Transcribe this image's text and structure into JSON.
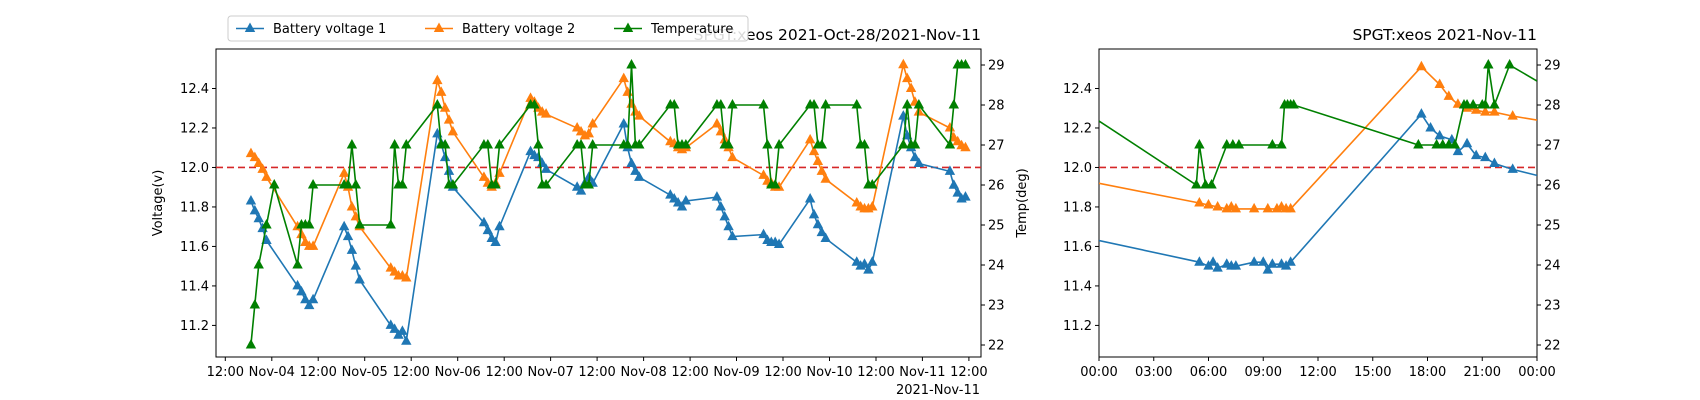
{
  "colors": {
    "battery1": "#1f77b4",
    "battery2": "#ff7f0e",
    "temperature": "#008000",
    "threshold": "#d62728"
  },
  "chart_data": [
    {
      "type": "line",
      "title": "SPGT:xeos 2021-Oct-28/2021-Nov-11",
      "xlabel": "",
      "ylabel": "Voltage(v)",
      "y2label": "Temp(deg)",
      "xlim": [
        "2021-11-03T09:00",
        "2021-11-11T14:00"
      ],
      "ylim": [
        11.04,
        12.6
      ],
      "y2lim": [
        21.7,
        29.4
      ],
      "x_tick_labels": [
        "12:00",
        "Nov-04",
        "12:00",
        "Nov-05",
        "12:00",
        "Nov-06",
        "12:00",
        "Nov-07",
        "12:00",
        "Nov-08",
        "12:00",
        "Nov-09",
        "12:00",
        "Nov-10",
        "12:00",
        "Nov-11",
        "12:00"
      ],
      "x_offset_label": "2021-Nov-11",
      "y_tick_labels": [
        "11.2",
        "11.4",
        "11.6",
        "11.8",
        "12.0",
        "12.2",
        "12.4"
      ],
      "y2_tick_labels": [
        "22",
        "23",
        "24",
        "25",
        "26",
        "27",
        "28",
        "29"
      ],
      "threshold": 12.0,
      "legend": {
        "placement": "top-left, above axes",
        "entries": [
          "Battery voltage 1",
          "Battery voltage 2",
          "Temperature"
        ]
      },
      "series": [
        {
          "name": "Battery voltage 1",
          "axis": "left",
          "marker": "triangle",
          "x": [
            "2021-11-03T18:00",
            "2021-11-03T19:00",
            "2021-11-03T20:00",
            "2021-11-03T21:00",
            "2021-11-03T22:00",
            "2021-11-04T06:00",
            "2021-11-04T07:00",
            "2021-11-04T08:00",
            "2021-11-04T09:00",
            "2021-11-04T10:00",
            "2021-11-04T18:00",
            "2021-11-04T19:00",
            "2021-11-04T20:00",
            "2021-11-04T21:00",
            "2021-11-04T22:00",
            "2021-11-05T06:00",
            "2021-11-05T07:00",
            "2021-11-05T08:00",
            "2021-11-05T09:00",
            "2021-11-05T10:00",
            "2021-11-05T18:00",
            "2021-11-05T19:00",
            "2021-11-05T20:00",
            "2021-11-05T21:00",
            "2021-11-05T22:00",
            "2021-11-06T06:00",
            "2021-11-06T07:00",
            "2021-11-06T08:00",
            "2021-11-06T09:00",
            "2021-11-06T10:00",
            "2021-11-06T18:00",
            "2021-11-06T19:00",
            "2021-11-06T20:00",
            "2021-11-06T21:00",
            "2021-11-06T22:00",
            "2021-11-07T06:00",
            "2021-11-07T07:00",
            "2021-11-07T08:00",
            "2021-11-07T09:00",
            "2021-11-07T10:00",
            "2021-11-07T18:00",
            "2021-11-07T19:00",
            "2021-11-07T20:00",
            "2021-11-07T21:00",
            "2021-11-07T22:00",
            "2021-11-08T06:00",
            "2021-11-08T07:00",
            "2021-11-08T08:00",
            "2021-11-08T09:00",
            "2021-11-08T10:00",
            "2021-11-08T18:00",
            "2021-11-08T19:00",
            "2021-11-08T20:00",
            "2021-11-08T21:00",
            "2021-11-08T22:00",
            "2021-11-09T06:00",
            "2021-11-09T07:00",
            "2021-11-09T08:00",
            "2021-11-09T09:00",
            "2021-11-09T10:00",
            "2021-11-09T18:00",
            "2021-11-09T19:00",
            "2021-11-09T20:00",
            "2021-11-09T21:00",
            "2021-11-09T22:00",
            "2021-11-10T06:00",
            "2021-11-10T07:00",
            "2021-11-10T08:00",
            "2021-11-10T09:00",
            "2021-11-10T10:00",
            "2021-11-10T18:00",
            "2021-11-10T19:00",
            "2021-11-10T20:00",
            "2021-11-10T21:00",
            "2021-11-10T22:00",
            "2021-11-11T06:00",
            "2021-11-11T07:00",
            "2021-11-11T08:00",
            "2021-11-11T09:00",
            "2021-11-11T10:00"
          ],
          "values": [
            11.83,
            11.78,
            11.74,
            11.69,
            11.63,
            11.4,
            11.37,
            11.33,
            11.3,
            11.33,
            11.7,
            11.65,
            11.58,
            11.5,
            11.43,
            11.2,
            11.18,
            11.15,
            11.17,
            11.12,
            12.17,
            12.12,
            12.05,
            11.98,
            11.9,
            11.72,
            11.68,
            11.64,
            11.62,
            11.7,
            12.08,
            12.06,
            12.05,
            12.02,
            11.99,
            11.9,
            11.88,
            11.92,
            11.95,
            11.92,
            12.22,
            12.1,
            12.02,
            11.98,
            11.95,
            11.86,
            11.84,
            11.82,
            11.8,
            11.83,
            11.85,
            11.8,
            11.75,
            11.7,
            11.65,
            11.66,
            11.63,
            11.62,
            11.62,
            11.61,
            11.84,
            11.76,
            11.71,
            11.67,
            11.64,
            11.52,
            11.5,
            11.51,
            11.48,
            11.52,
            12.26,
            12.16,
            12.1,
            12.05,
            12.02,
            11.98,
            11.91,
            11.87,
            11.84,
            11.85
          ]
        },
        {
          "name": "Battery voltage 2",
          "axis": "left",
          "marker": "triangle",
          "x": [
            "2021-11-03T18:00",
            "2021-11-03T19:00",
            "2021-11-03T20:00",
            "2021-11-03T21:00",
            "2021-11-03T22:00",
            "2021-11-04T06:00",
            "2021-11-04T07:00",
            "2021-11-04T08:00",
            "2021-11-04T09:00",
            "2021-11-04T10:00",
            "2021-11-04T18:00",
            "2021-11-04T19:00",
            "2021-11-04T20:00",
            "2021-11-04T21:00",
            "2021-11-04T22:00",
            "2021-11-05T06:00",
            "2021-11-05T07:00",
            "2021-11-05T08:00",
            "2021-11-05T09:00",
            "2021-11-05T10:00",
            "2021-11-05T18:00",
            "2021-11-05T19:00",
            "2021-11-05T20:00",
            "2021-11-05T21:00",
            "2021-11-05T22:00",
            "2021-11-06T06:00",
            "2021-11-06T07:00",
            "2021-11-06T08:00",
            "2021-11-06T09:00",
            "2021-11-06T10:00",
            "2021-11-06T18:00",
            "2021-11-06T19:00",
            "2021-11-06T20:00",
            "2021-11-06T21:00",
            "2021-11-06T22:00",
            "2021-11-07T06:00",
            "2021-11-07T07:00",
            "2021-11-07T08:00",
            "2021-11-07T09:00",
            "2021-11-07T10:00",
            "2021-11-07T18:00",
            "2021-11-07T19:00",
            "2021-11-07T20:00",
            "2021-11-07T21:00",
            "2021-11-07T22:00",
            "2021-11-08T06:00",
            "2021-11-08T07:00",
            "2021-11-08T08:00",
            "2021-11-08T09:00",
            "2021-11-08T10:00",
            "2021-11-08T18:00",
            "2021-11-08T19:00",
            "2021-11-08T20:00",
            "2021-11-08T21:00",
            "2021-11-08T22:00",
            "2021-11-09T06:00",
            "2021-11-09T07:00",
            "2021-11-09T08:00",
            "2021-11-09T09:00",
            "2021-11-09T10:00",
            "2021-11-09T18:00",
            "2021-11-09T19:00",
            "2021-11-09T20:00",
            "2021-11-09T21:00",
            "2021-11-09T22:00",
            "2021-11-10T06:00",
            "2021-11-10T07:00",
            "2021-11-10T08:00",
            "2021-11-10T09:00",
            "2021-11-10T10:00",
            "2021-11-10T18:00",
            "2021-11-10T19:00",
            "2021-11-10T20:00",
            "2021-11-10T21:00",
            "2021-11-10T22:00",
            "2021-11-11T06:00",
            "2021-11-11T07:00",
            "2021-11-11T08:00",
            "2021-11-11T09:00",
            "2021-11-11T10:00"
          ],
          "values": [
            12.07,
            12.05,
            12.02,
            11.99,
            11.95,
            11.7,
            11.66,
            11.62,
            11.6,
            11.6,
            11.97,
            11.9,
            11.8,
            11.75,
            11.7,
            11.49,
            11.47,
            11.45,
            11.45,
            11.44,
            12.44,
            12.38,
            12.3,
            12.24,
            12.18,
            11.95,
            11.92,
            11.9,
            11.92,
            11.97,
            12.35,
            12.33,
            12.3,
            12.28,
            12.27,
            12.2,
            12.18,
            12.16,
            12.17,
            12.22,
            12.45,
            12.38,
            12.32,
            12.28,
            12.26,
            12.13,
            12.12,
            12.1,
            12.09,
            12.1,
            12.22,
            12.18,
            12.14,
            12.1,
            12.05,
            11.96,
            11.93,
            11.92,
            11.9,
            11.9,
            12.14,
            12.08,
            12.03,
            11.98,
            11.94,
            11.82,
            11.8,
            11.79,
            11.79,
            11.8,
            12.52,
            12.45,
            12.4,
            12.33,
            12.28,
            12.2,
            12.15,
            12.13,
            12.11,
            12.1
          ]
        },
        {
          "name": "Temperature",
          "axis": "right",
          "marker": "triangle",
          "x": [
            "2021-11-03T18:00",
            "2021-11-03T19:00",
            "2021-11-03T20:00",
            "2021-11-03T22:00",
            "2021-11-04T00:00",
            "2021-11-04T06:00",
            "2021-11-04T07:00",
            "2021-11-04T08:00",
            "2021-11-04T09:00",
            "2021-11-04T10:00",
            "2021-11-04T18:00",
            "2021-11-04T19:00",
            "2021-11-04T20:00",
            "2021-11-04T21:00",
            "2021-11-04T22:00",
            "2021-11-05T06:00",
            "2021-11-05T07:00",
            "2021-11-05T08:00",
            "2021-11-05T09:00",
            "2021-11-05T10:00",
            "2021-11-05T18:00",
            "2021-11-05T19:00",
            "2021-11-05T20:00",
            "2021-11-05T21:00",
            "2021-11-05T22:00",
            "2021-11-06T06:00",
            "2021-11-06T07:00",
            "2021-11-06T08:00",
            "2021-11-06T09:00",
            "2021-11-06T10:00",
            "2021-11-06T18:00",
            "2021-11-06T19:00",
            "2021-11-06T20:00",
            "2021-11-06T21:00",
            "2021-11-06T22:00",
            "2021-11-07T06:00",
            "2021-11-07T07:00",
            "2021-11-07T08:00",
            "2021-11-07T09:00",
            "2021-11-07T10:00",
            "2021-11-07T18:00",
            "2021-11-07T19:00",
            "2021-11-07T20:00",
            "2021-11-07T21:00",
            "2021-11-07T22:00",
            "2021-11-08T06:00",
            "2021-11-08T07:00",
            "2021-11-08T08:00",
            "2021-11-08T09:00",
            "2021-11-08T10:00",
            "2021-11-08T18:00",
            "2021-11-08T19:00",
            "2021-11-08T20:00",
            "2021-11-08T21:00",
            "2021-11-08T22:00",
            "2021-11-09T06:00",
            "2021-11-09T07:00",
            "2021-11-09T08:00",
            "2021-11-09T09:00",
            "2021-11-09T10:00",
            "2021-11-09T18:00",
            "2021-11-09T19:00",
            "2021-11-09T20:00",
            "2021-11-09T21:00",
            "2021-11-09T22:00",
            "2021-11-10T06:00",
            "2021-11-10T07:00",
            "2021-11-10T08:00",
            "2021-11-10T09:00",
            "2021-11-10T10:00",
            "2021-11-10T18:00",
            "2021-11-10T19:00",
            "2021-11-10T20:00",
            "2021-11-10T21:00",
            "2021-11-10T22:00",
            "2021-11-11T06:00",
            "2021-11-11T07:00",
            "2021-11-11T08:00",
            "2021-11-11T09:00",
            "2021-11-11T10:00"
          ],
          "values": [
            22,
            23,
            24,
            25,
            26,
            24,
            25,
            25,
            25,
            26,
            26,
            26,
            27,
            26,
            25,
            25,
            27,
            26,
            26,
            27,
            28,
            27,
            27,
            26,
            26,
            27,
            27,
            26,
            26,
            27,
            28,
            28,
            27,
            26,
            26,
            27,
            27,
            26,
            26,
            27,
            27,
            27,
            29,
            27,
            27,
            28,
            28,
            27,
            27,
            27,
            28,
            28,
            27,
            27,
            28,
            28,
            27,
            26,
            26,
            27,
            28,
            28,
            27,
            27,
            28,
            28,
            27,
            27,
            26,
            26,
            27,
            28,
            27,
            27,
            28,
            27,
            28,
            29,
            29,
            29
          ]
        }
      ]
    },
    {
      "type": "line",
      "title": "SPGT:xeos 2021-Nov-11",
      "xlabel": "",
      "ylabel": "",
      "y2label": "",
      "xlim": [
        "2021-11-11T00:00",
        "2021-11-12T00:00"
      ],
      "ylim": [
        11.04,
        12.6
      ],
      "y2lim": [
        21.7,
        29.4
      ],
      "x_tick_labels": [
        "00:00",
        "03:00",
        "06:00",
        "09:00",
        "12:00",
        "15:00",
        "18:00",
        "21:00",
        "00:00"
      ],
      "y_tick_labels": [
        "11.2",
        "11.4",
        "11.6",
        "11.8",
        "12.0",
        "12.2",
        "12.4"
      ],
      "y2_tick_labels": [
        "22",
        "23",
        "24",
        "25",
        "26",
        "27",
        "28",
        "29"
      ],
      "threshold": 12.0,
      "series": [
        {
          "name": "Battery voltage 1",
          "axis": "left",
          "marker": "triangle",
          "x": [
            "00:00",
            "05:30",
            "06:00",
            "06:15",
            "06:30",
            "07:00",
            "07:15",
            "07:30",
            "08:30",
            "09:00",
            "09:15",
            "09:30",
            "10:00",
            "10:15",
            "10:30",
            "17:40",
            "18:10",
            "18:40",
            "19:20",
            "19:40",
            "20:10",
            "20:40",
            "21:10",
            "21:40",
            "22:40",
            "24:00"
          ],
          "values": [
            11.63,
            11.52,
            11.5,
            11.52,
            11.49,
            11.51,
            11.5,
            11.5,
            11.52,
            11.52,
            11.48,
            11.51,
            11.51,
            11.5,
            11.52,
            12.27,
            12.2,
            12.16,
            12.14,
            12.08,
            12.12,
            12.06,
            12.05,
            12.02,
            11.99,
            11.96
          ],
          "marker_skip": [
            0,
            25
          ]
        },
        {
          "name": "Battery voltage 2",
          "axis": "left",
          "marker": "triangle",
          "x": [
            "00:00",
            "05:30",
            "06:00",
            "06:30",
            "07:00",
            "07:15",
            "07:30",
            "08:30",
            "09:15",
            "09:45",
            "10:00",
            "10:15",
            "10:30",
            "17:40",
            "18:40",
            "19:10",
            "19:40",
            "20:10",
            "20:40",
            "21:10",
            "21:40",
            "22:40",
            "24:00"
          ],
          "values": [
            11.92,
            11.82,
            11.81,
            11.8,
            11.79,
            11.8,
            11.79,
            11.79,
            11.79,
            11.79,
            11.8,
            11.79,
            11.79,
            12.51,
            12.42,
            12.36,
            12.32,
            12.3,
            12.29,
            12.28,
            12.28,
            12.26,
            12.24
          ],
          "marker_skip": [
            0,
            22
          ]
        },
        {
          "name": "Temperature",
          "axis": "right",
          "marker": "triangle",
          "x": [
            "00:00",
            "05:20",
            "05:30",
            "05:50",
            "06:10",
            "07:00",
            "07:20",
            "07:40",
            "09:30",
            "10:00",
            "10:10",
            "10:20",
            "10:30",
            "10:40",
            "17:30",
            "18:30",
            "18:50",
            "19:10",
            "19:30",
            "20:00",
            "20:10",
            "20:30",
            "21:00",
            "21:10",
            "21:20",
            "21:40",
            "22:30",
            "24:00"
          ],
          "values": [
            27.6,
            26,
            27,
            26,
            26,
            27,
            27,
            27,
            27,
            27,
            28,
            28,
            28,
            28,
            27,
            27,
            27,
            27,
            27,
            28,
            28,
            28,
            28,
            28,
            29,
            28,
            29,
            28.6
          ],
          "marker_skip": [
            0,
            27
          ]
        }
      ]
    }
  ]
}
